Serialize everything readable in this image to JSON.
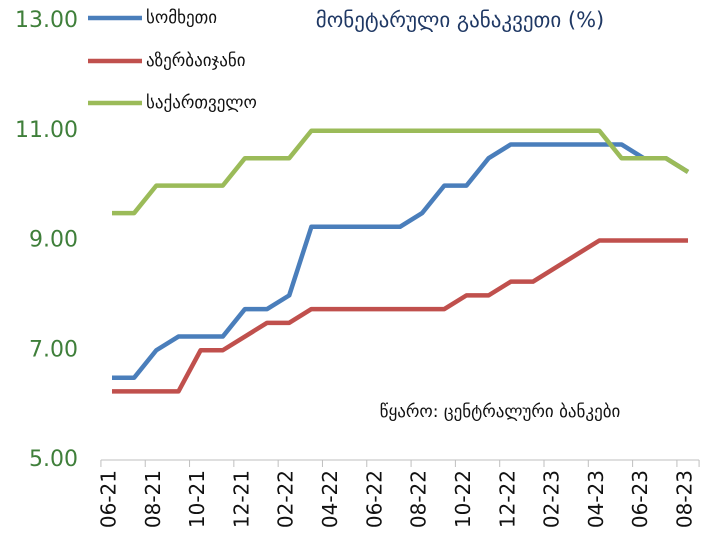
{
  "chart_data": {
    "type": "line",
    "title": "მონეტარული განაკვეთი (%)",
    "annotation": "წყარო: ცენტრალური ბანკები",
    "categories": [
      "06-21",
      null,
      "08-21",
      null,
      "10-21",
      null,
      "12-21",
      null,
      "02-22",
      null,
      "04-22",
      null,
      "06-22",
      null,
      "08-22",
      null,
      "10-22",
      null,
      "12-22",
      null,
      "02-23",
      null,
      "04-23",
      null,
      "06-23",
      null,
      "08-23"
    ],
    "series": [
      {
        "name": "სომხეთი",
        "color": "#4a7ebb",
        "values": [
          6.5,
          6.5,
          7.0,
          7.25,
          7.25,
          7.25,
          7.75,
          7.75,
          8.0,
          9.25,
          9.25,
          9.25,
          9.25,
          9.25,
          9.5,
          10.0,
          10.0,
          10.5,
          10.75,
          10.75,
          10.75,
          10.75,
          10.75,
          10.75,
          10.5,
          10.5,
          10.25
        ]
      },
      {
        "name": "აზერბაიჯანი",
        "color": "#c0504d",
        "values": [
          6.25,
          6.25,
          6.25,
          6.25,
          7.0,
          7.0,
          7.25,
          7.5,
          7.5,
          7.75,
          7.75,
          7.75,
          7.75,
          7.75,
          7.75,
          7.75,
          8.0,
          8.0,
          8.25,
          8.25,
          8.5,
          8.75,
          9.0,
          9.0,
          9.0,
          9.0,
          9.0
        ]
      },
      {
        "name": "საქართველო",
        "color": "#9bbb59",
        "values": [
          9.5,
          9.5,
          10.0,
          10.0,
          10.0,
          10.0,
          10.5,
          10.5,
          10.5,
          11.0,
          11.0,
          11.0,
          11.0,
          11.0,
          11.0,
          11.0,
          11.0,
          11.0,
          11.0,
          11.0,
          11.0,
          11.0,
          11.0,
          10.5,
          10.5,
          10.5,
          10.25
        ]
      }
    ],
    "ylim": [
      5,
      13
    ],
    "yticks": [
      {
        "value": 5,
        "label": "5.00"
      },
      {
        "value": 7,
        "label": "7.00"
      },
      {
        "value": 9,
        "label": "9.00"
      },
      {
        "value": 11,
        "label": "11.00"
      },
      {
        "value": 13,
        "label": "13.00"
      }
    ],
    "grid": false
  }
}
